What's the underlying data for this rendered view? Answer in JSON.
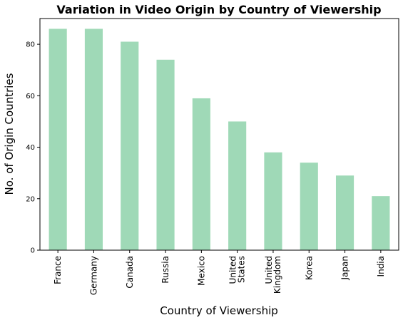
{
  "chart_data": {
    "type": "bar",
    "title": "Variation in Video Origin by Country of Viewership",
    "xlabel": "Country of Viewership",
    "ylabel": "No. of Origin Countries",
    "categories": [
      [
        "France"
      ],
      [
        "Germany"
      ],
      [
        "Canada"
      ],
      [
        "Russia"
      ],
      [
        "Mexico"
      ],
      [
        "United",
        "States"
      ],
      [
        "United",
        "Kingdom"
      ],
      [
        "Korea"
      ],
      [
        "Japan"
      ],
      [
        "India"
      ]
    ],
    "values": [
      86,
      86,
      81,
      74,
      59,
      50,
      38,
      34,
      29,
      21
    ],
    "ylim": [
      0,
      90
    ],
    "yticks": [
      0,
      20,
      40,
      60,
      80
    ],
    "grid": false,
    "bar_color": "#9fd9b7"
  }
}
